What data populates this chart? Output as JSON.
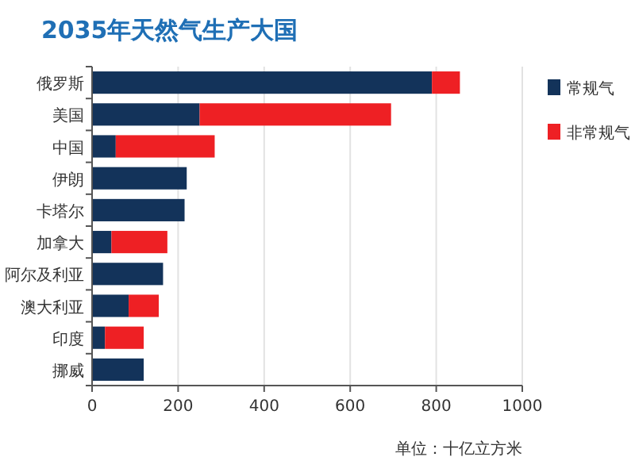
{
  "chart_data": {
    "type": "bar",
    "orientation": "horizontal",
    "stacked": true,
    "title": "2035年天然气生产大国",
    "categories": [
      "俄罗斯",
      "美国",
      "中国",
      "伊朗",
      "卡塔尔",
      "加拿大",
      "阿尔及利亚",
      "澳大利亚",
      "印度",
      "挪威"
    ],
    "series": [
      {
        "name": "常规气",
        "color": "#13335a",
        "values": [
          790,
          250,
          55,
          220,
          215,
          45,
          165,
          85,
          30,
          120
        ]
      },
      {
        "name": "非常规气",
        "color": "#ee2024",
        "values": [
          65,
          445,
          230,
          null,
          null,
          130,
          null,
          70,
          90,
          null
        ]
      }
    ],
    "xlim": [
      0,
      1000
    ],
    "xticks": [
      0,
      200,
      400,
      600,
      800,
      1000
    ],
    "grid": "x",
    "legend": "top right",
    "annotations": [
      "单位：十亿立方米"
    ]
  }
}
